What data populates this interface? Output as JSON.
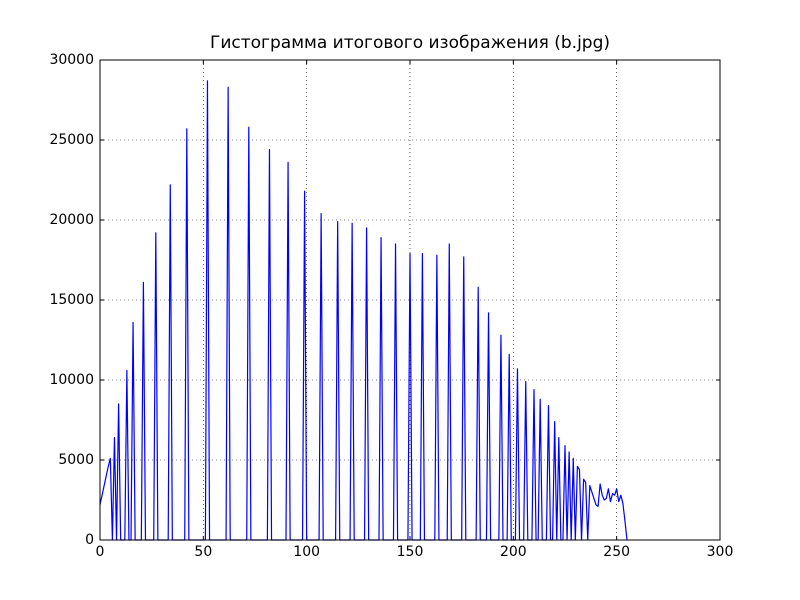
{
  "chart_data": {
    "type": "line",
    "title": "Гистограмма итогового изображения (b.jpg)",
    "x": [
      0,
      1,
      2,
      3,
      4,
      5,
      6,
      7,
      8,
      9,
      10,
      11,
      12,
      13,
      14,
      15,
      16,
      17,
      18,
      19,
      20,
      21,
      22,
      23,
      24,
      25,
      26,
      27,
      28,
      29,
      30,
      31,
      32,
      33,
      34,
      35,
      36,
      37,
      38,
      39,
      40,
      41,
      42,
      43,
      44,
      45,
      46,
      47,
      48,
      49,
      50,
      51,
      52,
      53,
      54,
      55,
      56,
      57,
      58,
      59,
      60,
      61,
      62,
      63,
      64,
      65,
      66,
      67,
      68,
      69,
      70,
      71,
      72,
      73,
      74,
      75,
      76,
      77,
      78,
      79,
      80,
      81,
      82,
      83,
      84,
      85,
      86,
      87,
      88,
      89,
      90,
      91,
      92,
      93,
      94,
      95,
      96,
      97,
      98,
      99,
      100,
      101,
      102,
      103,
      104,
      105,
      106,
      107,
      108,
      109,
      110,
      111,
      112,
      113,
      114,
      115,
      116,
      117,
      118,
      119,
      120,
      121,
      122,
      123,
      124,
      125,
      126,
      127,
      128,
      129,
      130,
      131,
      132,
      133,
      134,
      135,
      136,
      137,
      138,
      139,
      140,
      141,
      142,
      143,
      144,
      145,
      146,
      147,
      148,
      149,
      150,
      151,
      152,
      153,
      154,
      155,
      156,
      157,
      158,
      159,
      160,
      161,
      162,
      163,
      164,
      165,
      166,
      167,
      168,
      169,
      170,
      171,
      172,
      173,
      174,
      175,
      176,
      177,
      178,
      179,
      180,
      181,
      182,
      183,
      184,
      185,
      186,
      187,
      188,
      189,
      190,
      191,
      192,
      193,
      194,
      195,
      196,
      197,
      198,
      199,
      200,
      201,
      202,
      203,
      204,
      205,
      206,
      207,
      208,
      209,
      210,
      211,
      212,
      213,
      214,
      215,
      216,
      217,
      218,
      219,
      220,
      221,
      222,
      223,
      224,
      225,
      226,
      227,
      228,
      229,
      230,
      231,
      232,
      233,
      234,
      235,
      236,
      237,
      238,
      239,
      240,
      241,
      242,
      243,
      244,
      245,
      246,
      247,
      248,
      249,
      250,
      251,
      252,
      253,
      254,
      255
    ],
    "series": [
      {
        "color": "#0000ff",
        "values": [
          2200,
          2800,
          3400,
          4000,
          4600,
          5100,
          0,
          6400,
          0,
          8500,
          0,
          0,
          0,
          10600,
          0,
          0,
          13600,
          0,
          0,
          0,
          0,
          16100,
          0,
          0,
          0,
          0,
          0,
          19200,
          0,
          0,
          0,
          0,
          0,
          0,
          22200,
          0,
          0,
          0,
          0,
          0,
          0,
          0,
          25700,
          0,
          0,
          0,
          0,
          0,
          0,
          0,
          0,
          0,
          28700,
          0,
          0,
          0,
          0,
          0,
          0,
          0,
          0,
          0,
          28300,
          0,
          0,
          0,
          0,
          0,
          0,
          0,
          0,
          0,
          25800,
          0,
          0,
          0,
          0,
          0,
          0,
          0,
          0,
          0,
          24400,
          0,
          0,
          0,
          0,
          0,
          0,
          0,
          0,
          23600,
          0,
          0,
          0,
          0,
          0,
          0,
          0,
          21800,
          0,
          0,
          0,
          0,
          0,
          0,
          0,
          20400,
          0,
          0,
          0,
          0,
          0,
          0,
          0,
          19900,
          0,
          0,
          0,
          0,
          0,
          0,
          19800,
          0,
          0,
          0,
          0,
          0,
          0,
          19500,
          0,
          0,
          0,
          0,
          0,
          0,
          18900,
          0,
          0,
          0,
          0,
          0,
          0,
          18500,
          0,
          0,
          0,
          0,
          0,
          0,
          17900,
          0,
          0,
          0,
          0,
          0,
          17900,
          0,
          0,
          0,
          0,
          0,
          0,
          17800,
          0,
          0,
          0,
          0,
          0,
          18500,
          0,
          0,
          0,
          0,
          0,
          0,
          17700,
          0,
          0,
          0,
          0,
          0,
          0,
          15800,
          0,
          0,
          0,
          0,
          14200,
          0,
          0,
          0,
          0,
          0,
          12800,
          0,
          0,
          0,
          11600,
          0,
          0,
          0,
          10700,
          0,
          0,
          0,
          9900,
          0,
          0,
          0,
          9400,
          0,
          0,
          8800,
          0,
          0,
          0,
          8400,
          0,
          0,
          7400,
          0,
          6400,
          0,
          0,
          5900,
          0,
          5500,
          0,
          5100,
          0,
          4600,
          4400,
          0,
          3800,
          3600,
          0,
          3400,
          3000,
          2600,
          2200,
          2100,
          3500,
          2800,
          2500,
          2600,
          3200,
          2400,
          2900,
          2800,
          3200,
          2400,
          2800,
          2300,
          1200,
          0
        ]
      }
    ],
    "xlim": [
      0,
      300
    ],
    "xticks": [
      0,
      50,
      100,
      150,
      200,
      250,
      300
    ],
    "ylim": [
      0,
      30000
    ],
    "yticks": [
      0,
      5000,
      10000,
      15000,
      20000,
      25000,
      30000
    ],
    "grid": true
  }
}
